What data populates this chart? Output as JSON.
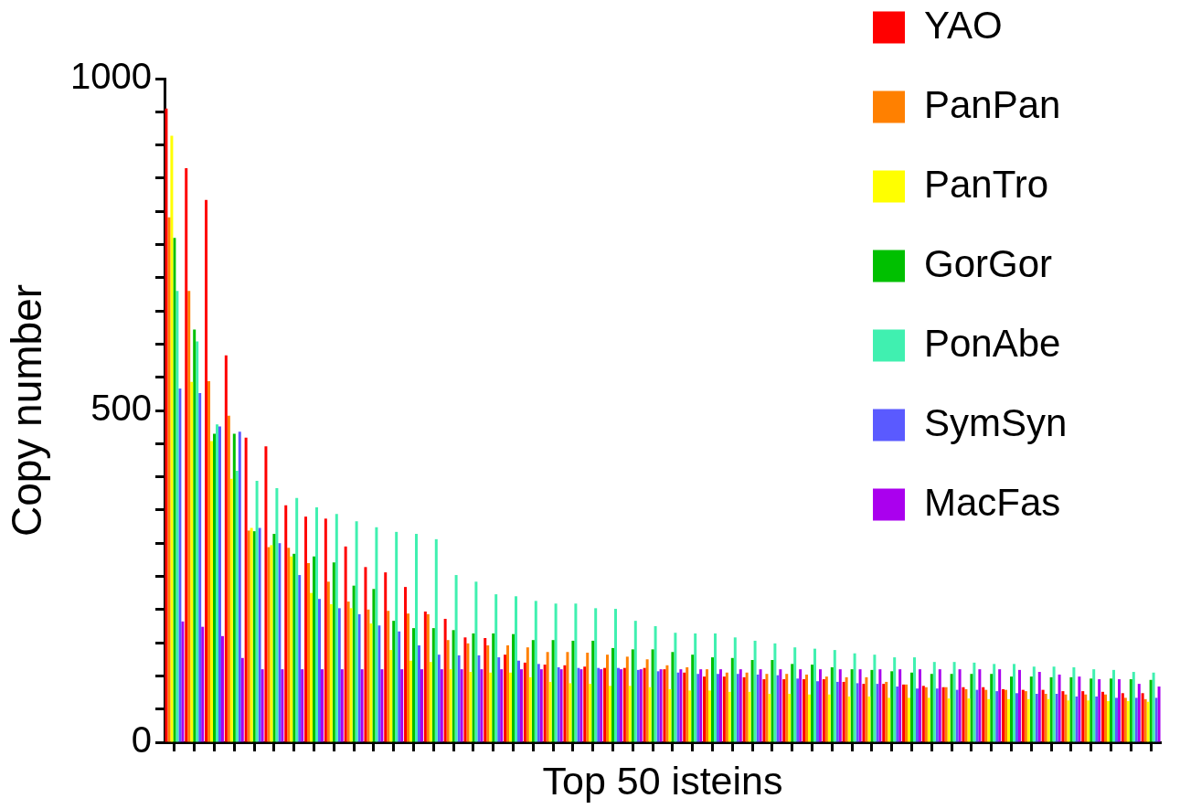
{
  "chart_data": {
    "type": "bar",
    "xlabel": "Top 50 isteins",
    "ylabel": "Copy number",
    "categories": [
      null,
      null,
      null,
      null,
      null,
      null,
      null,
      null,
      null,
      null,
      null,
      null,
      null,
      null,
      null,
      null,
      null,
      null,
      null,
      null,
      null,
      null,
      null,
      null,
      null,
      null,
      null,
      null,
      null,
      null,
      null,
      null,
      null,
      null,
      null,
      null,
      null,
      null,
      null,
      null,
      null,
      null,
      null,
      null,
      null,
      null,
      null,
      null,
      null,
      null
    ],
    "series": [
      {
        "name": "YAO",
        "color": "#ff0000",
        "values": [
          955,
          865,
          817,
          583,
          459,
          446,
          357,
          340,
          337,
          295,
          264,
          256,
          234,
          197,
          186,
          158,
          157,
          132,
          120,
          117,
          116,
          114,
          112,
          112,
          112,
          110,
          105,
          99,
          99,
          98,
          95,
          95,
          95,
          95,
          91,
          88,
          88,
          87,
          85,
          83,
          83,
          83,
          80,
          79,
          79,
          77,
          77,
          76,
          74,
          74
        ]
      },
      {
        "name": "PanPan",
        "color": "#ff8000",
        "values": [
          791,
          680,
          544,
          492,
          319,
          294,
          293,
          270,
          242,
          212,
          200,
          198,
          194,
          193,
          154,
          149,
          146,
          146,
          143,
          136,
          136,
          135,
          132,
          129,
          125,
          116,
          113,
          110,
          105,
          105,
          103,
          103,
          102,
          99,
          98,
          98,
          91,
          87,
          83,
          83,
          80,
          79,
          79,
          77,
          73,
          72,
          72,
          72,
          67,
          65
        ]
      },
      {
        "name": "PanTro",
        "color": "#ffff00",
        "values": [
          914,
          543,
          454,
          397,
          323,
          297,
          280,
          225,
          208,
          202,
          179,
          139,
          123,
          121,
          110,
          106,
          105,
          105,
          98,
          91,
          89,
          88,
          85,
          85,
          83,
          80,
          78,
          78,
          76,
          76,
          73,
          73,
          72,
          72,
          69,
          69,
          67,
          67,
          67,
          66,
          66,
          65,
          65,
          65,
          65,
          63,
          63,
          62,
          62,
          61
        ]
      },
      {
        "name": "GorGor",
        "color": "#00c000",
        "values": [
          760,
          622,
          465,
          465,
          318,
          314,
          284,
          280,
          271,
          236,
          231,
          183,
          172,
          172,
          169,
          164,
          164,
          163,
          154,
          154,
          153,
          153,
          142,
          140,
          140,
          136,
          132,
          128,
          127,
          124,
          124,
          118,
          117,
          113,
          110,
          109,
          107,
          105,
          103,
          103,
          103,
          103,
          99,
          99,
          98,
          98,
          96,
          96,
          95,
          94
        ]
      },
      {
        "name": "PonAbe",
        "color": "#40f0b0",
        "values": [
          680,
          604,
          479,
          409,
          394,
          383,
          368,
          354,
          344,
          333,
          324,
          317,
          314,
          306,
          252,
          242,
          223,
          220,
          213,
          209,
          209,
          202,
          201,
          183,
          175,
          165,
          164,
          164,
          158,
          153,
          149,
          143,
          141,
          139,
          134,
          132,
          128,
          128,
          121,
          121,
          120,
          118,
          118,
          114,
          114,
          113,
          110,
          109,
          106,
          105
        ]
      },
      {
        "name": "SymSyn",
        "color": "#5a5aff",
        "values": [
          533,
          526,
          476,
          468,
          323,
          300,
          252,
          216,
          202,
          193,
          176,
          167,
          146,
          132,
          131,
          131,
          128,
          123,
          118,
          113,
          112,
          112,
          112,
          109,
          107,
          105,
          103,
          103,
          103,
          102,
          101,
          96,
          92,
          91,
          89,
          88,
          84,
          81,
          81,
          79,
          79,
          77,
          74,
          73,
          73,
          69,
          69,
          67,
          67,
          67
        ]
      },
      {
        "name": "MacFas",
        "color": "#aa00ee",
        "values": [
          182,
          174,
          160,
          127,
          110,
          110,
          110,
          110,
          110,
          110,
          110,
          110,
          110,
          110,
          110,
          110,
          110,
          110,
          110,
          110,
          110,
          110,
          110,
          110,
          110,
          110,
          110,
          110,
          110,
          110,
          110,
          110,
          110,
          110,
          110,
          110,
          110,
          110,
          110,
          110,
          110,
          110,
          109,
          106,
          102,
          99,
          95,
          95,
          88,
          84
        ]
      }
    ],
    "ylim": [
      0,
      1000
    ],
    "yticks": [
      0,
      {
        "value": 50,
        "label": null
      },
      {
        "value": 100,
        "label": null
      },
      {
        "value": 150,
        "label": null
      },
      {
        "value": 200,
        "label": null
      },
      {
        "value": 250,
        "label": null
      },
      {
        "value": 300,
        "label": null
      },
      {
        "value": 350,
        "label": null
      },
      {
        "value": 400,
        "label": null
      },
      {
        "value": 450,
        "label": null
      },
      500,
      {
        "value": 550,
        "label": null
      },
      {
        "value": 600,
        "label": null
      },
      {
        "value": 650,
        "label": null
      },
      {
        "value": 700,
        "label": null
      },
      {
        "value": 750,
        "label": null
      },
      {
        "value": 800,
        "label": null
      },
      {
        "value": 850,
        "label": null
      },
      {
        "value": 900,
        "label": null
      },
      {
        "value": 950,
        "label": null
      },
      1000
    ],
    "grid": false,
    "legend": "top right",
    "tick_labels": "y"
  }
}
